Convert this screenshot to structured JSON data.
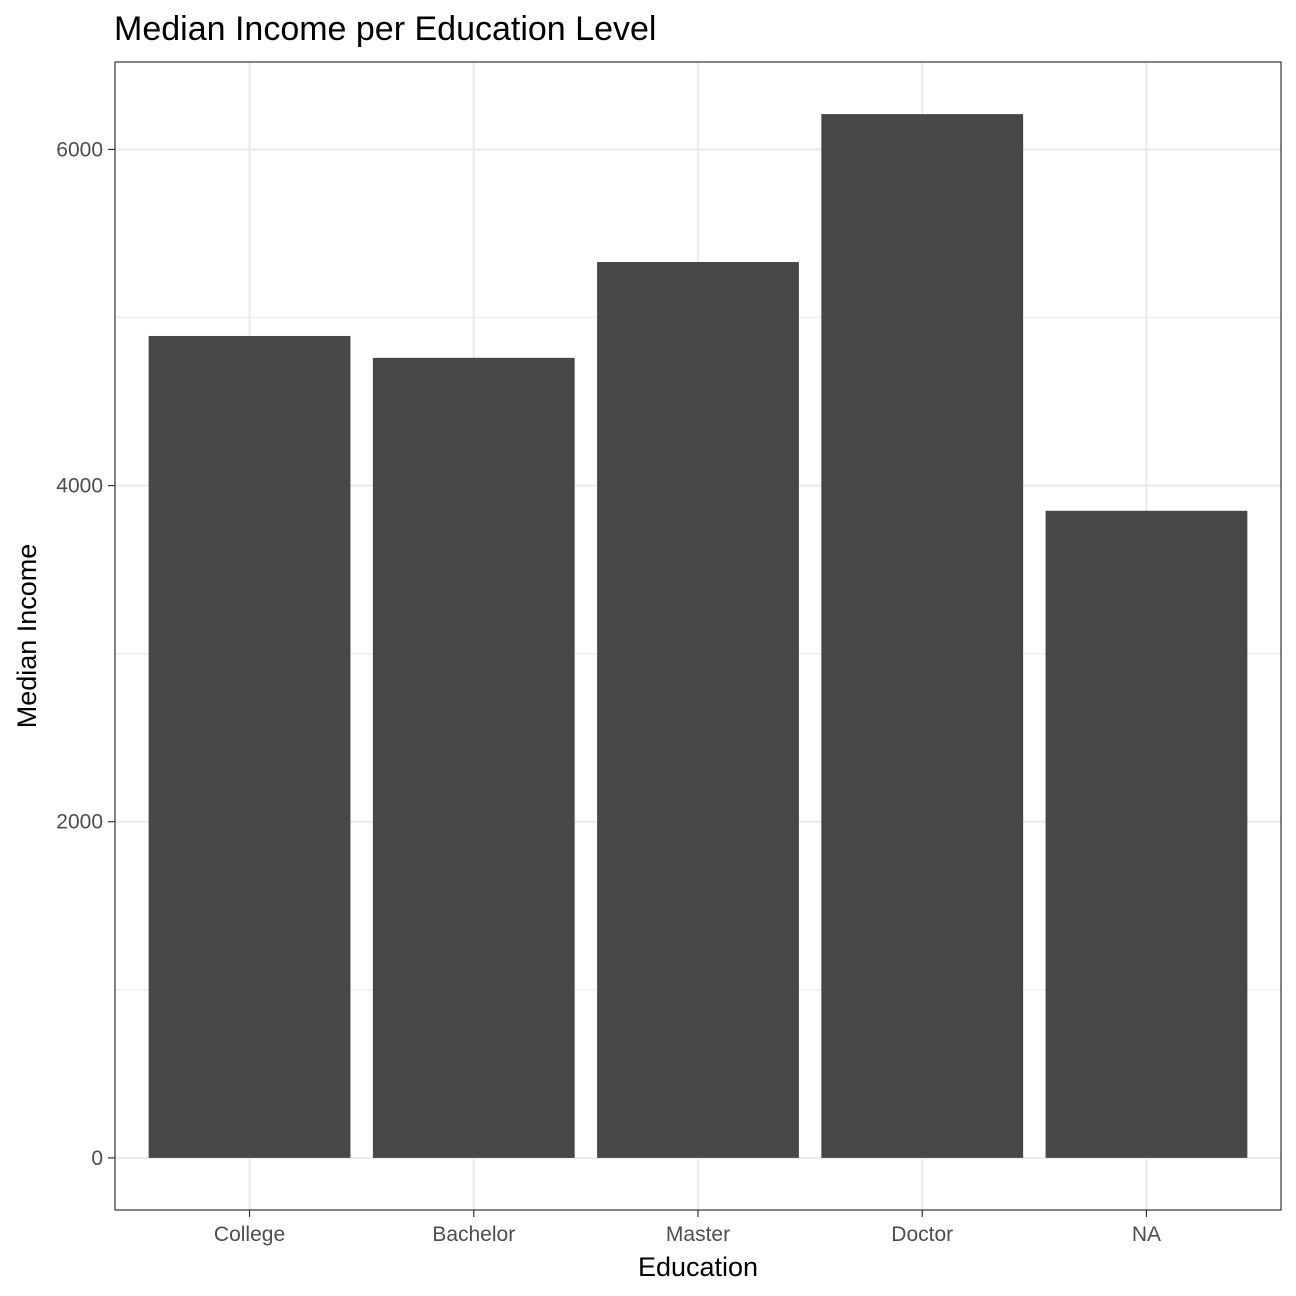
{
  "chart_data": {
    "type": "bar",
    "title": "Median Income per Education Level",
    "xlabel": "Education",
    "ylabel": "Median Income",
    "categories": [
      "College",
      "Bachelor",
      "Master",
      "Doctor",
      "NA"
    ],
    "values": [
      4890,
      4760,
      5330,
      6210,
      3850
    ],
    "yticks": [
      0,
      2000,
      4000,
      6000
    ],
    "ytick_labels": [
      "0",
      "2000",
      "4000",
      "6000"
    ],
    "ylim": [
      -310,
      6520
    ],
    "grid": true,
    "legend": "none",
    "colors": {
      "bar": "#474747",
      "grid": "#ebebeb",
      "panel_border": "#333333",
      "tick": "#333333"
    }
  }
}
